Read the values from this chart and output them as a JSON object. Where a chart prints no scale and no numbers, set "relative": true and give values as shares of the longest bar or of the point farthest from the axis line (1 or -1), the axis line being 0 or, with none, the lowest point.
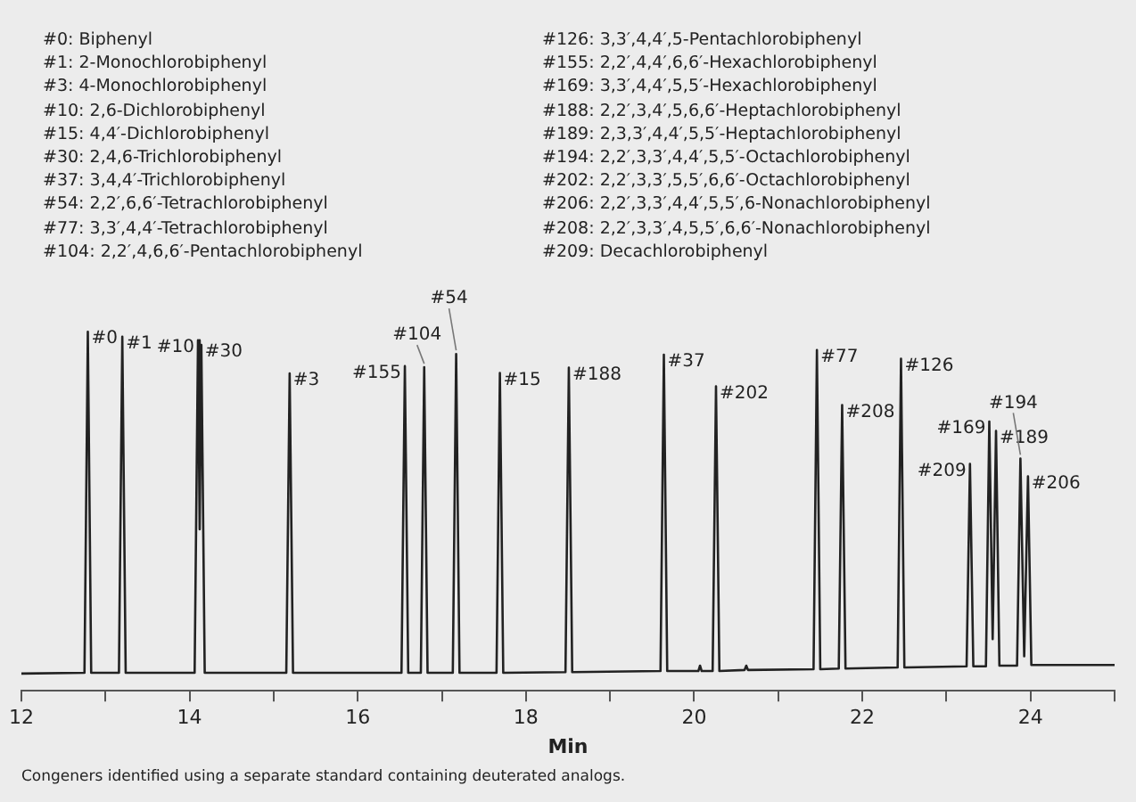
{
  "chart_data": {
    "type": "line",
    "relative": true,
    "xlabel": "Min",
    "color": "#222222",
    "marker": "none",
    "legend": false,
    "grid": false,
    "tick_labels": "x",
    "xlim": [
      12,
      25
    ],
    "xticks": [
      12,
      {
        "value": 13,
        "label": null
      },
      14,
      {
        "value": 15,
        "label": null
      },
      16,
      {
        "value": 17,
        "label": null
      },
      18,
      {
        "value": 19,
        "label": null
      },
      20,
      {
        "value": 21,
        "label": null
      },
      22,
      {
        "value": 23,
        "label": null
      },
      24,
      {
        "value": 25,
        "label": null
      }
    ],
    "x": [
      12.0,
      12.75,
      12.79,
      12.83,
      13.16,
      13.2,
      13.24,
      14.06,
      14.1,
      14.12,
      14.14,
      14.18,
      15.15,
      15.19,
      15.23,
      16.52,
      16.56,
      16.6,
      16.75,
      16.79,
      16.83,
      17.13,
      17.17,
      17.21,
      17.65,
      17.69,
      17.73,
      18.47,
      18.51,
      18.55,
      19.6,
      19.64,
      19.68,
      20.05,
      20.07,
      20.09,
      20.22,
      20.26,
      20.3,
      20.6,
      20.62,
      20.64,
      21.42,
      21.46,
      21.5,
      21.72,
      21.76,
      21.8,
      22.42,
      22.46,
      22.5,
      23.24,
      23.28,
      23.32,
      23.47,
      23.51,
      23.55,
      23.59,
      23.63,
      23.84,
      23.88,
      23.925,
      23.97,
      24.01,
      25.0
    ],
    "values": [
      0.048,
      0.05,
      1.0,
      0.05,
      0.05,
      0.986,
      0.05,
      0.05,
      0.976,
      0.45,
      0.963,
      0.05,
      0.05,
      0.884,
      0.05,
      0.05,
      0.904,
      0.05,
      0.05,
      0.901,
      0.05,
      0.05,
      0.938,
      0.05,
      0.05,
      0.885,
      0.05,
      0.052,
      0.9,
      0.052,
      0.055,
      0.936,
      0.055,
      0.055,
      0.07,
      0.055,
      0.055,
      0.848,
      0.055,
      0.058,
      0.07,
      0.058,
      0.06,
      0.949,
      0.06,
      0.062,
      0.796,
      0.062,
      0.065,
      0.925,
      0.065,
      0.068,
      0.632,
      0.068,
      0.068,
      0.75,
      0.144,
      0.724,
      0.07,
      0.07,
      0.647,
      0.096,
      0.597,
      0.072,
      0.072
    ],
    "annotations": [
      "#0:  Biphenyl",
      "#1:  2-Monochlorobiphenyl",
      "#3:  4-Monochlorobiphenyl",
      "#10:  2,6-Dichlorobiphenyl",
      "#15:  4,4′-Dichlorobiphenyl",
      "#30:  2,4,6-Trichlorobiphenyl",
      "#37:  3,4,4′-Trichlorobiphenyl",
      "#54:  2,2′,6,6′-Tetrachlorobiphenyl",
      "#77:  3,3′,4,4′-Tetrachlorobiphenyl",
      "#104:  2,2′,4,6,6′-Pentachlorobiphenyl",
      "#126:  3,3′,4,4′,5-Pentachlorobiphenyl",
      "#155:  2,2′,4,4′,6,6′-Hexachlorobiphenyl",
      "#169:  3,3′,4,4′,5,5′-Hexachlorobiphenyl",
      "#188:  2,2′,3,4′,5,6,6′-Heptachlorobiphenyl",
      "#189:  2,3,3′,4,4′,5,5′-Heptachlorobiphenyl",
      "#194:  2,2′,3,3′,4,4′,5,5′-Octachlorobiphenyl",
      "#202:  2,2′,3,3′,5,5′,6,6′-Octachlorobiphenyl",
      "#206:  2,2′,3,3′,4,4′,5,5′,6-Nonachlorobiphenyl",
      "#208:  2,2′,3,3′,4,5,5′,6,6′-Nonachlorobiphenyl",
      "#209:  Decachlorobiphenyl",
      {
        "text": "#0",
        "x": 12.79,
        "y": 1.0
      },
      {
        "text": "#1",
        "x": 13.2,
        "y": 0.986
      },
      {
        "text": "#10",
        "x": 14.1,
        "y": 0.976
      },
      {
        "text": "#30",
        "x": 14.14,
        "y": 0.963
      },
      {
        "text": "#3",
        "x": 15.19,
        "y": 0.884
      },
      {
        "text": "#155",
        "x": 16.56,
        "y": 0.904
      },
      {
        "text": "#104",
        "x": 16.79,
        "y": 0.901
      },
      {
        "text": "#54",
        "x": 17.17,
        "y": 0.938
      },
      {
        "text": "#15",
        "x": 17.69,
        "y": 0.885
      },
      {
        "text": "#188",
        "x": 18.51,
        "y": 0.9
      },
      {
        "text": "#37",
        "x": 19.64,
        "y": 0.936
      },
      {
        "text": "#202",
        "x": 20.26,
        "y": 0.848
      },
      {
        "text": "#77",
        "x": 21.46,
        "y": 0.949
      },
      {
        "text": "#208",
        "x": 21.76,
        "y": 0.796
      },
      {
        "text": "#126",
        "x": 22.46,
        "y": 0.925
      },
      {
        "text": "#209",
        "x": 23.28,
        "y": 0.632
      },
      {
        "text": "#169",
        "x": 23.51,
        "y": 0.75
      },
      {
        "text": "#189",
        "x": 23.59,
        "y": 0.724
      },
      {
        "text": "#194",
        "x": 23.88,
        "y": 0.647
      },
      {
        "text": "#206",
        "x": 23.97,
        "y": 0.597
      },
      "Congeners identified using a separate standard containing deuterated analogs."
    ]
  }
}
